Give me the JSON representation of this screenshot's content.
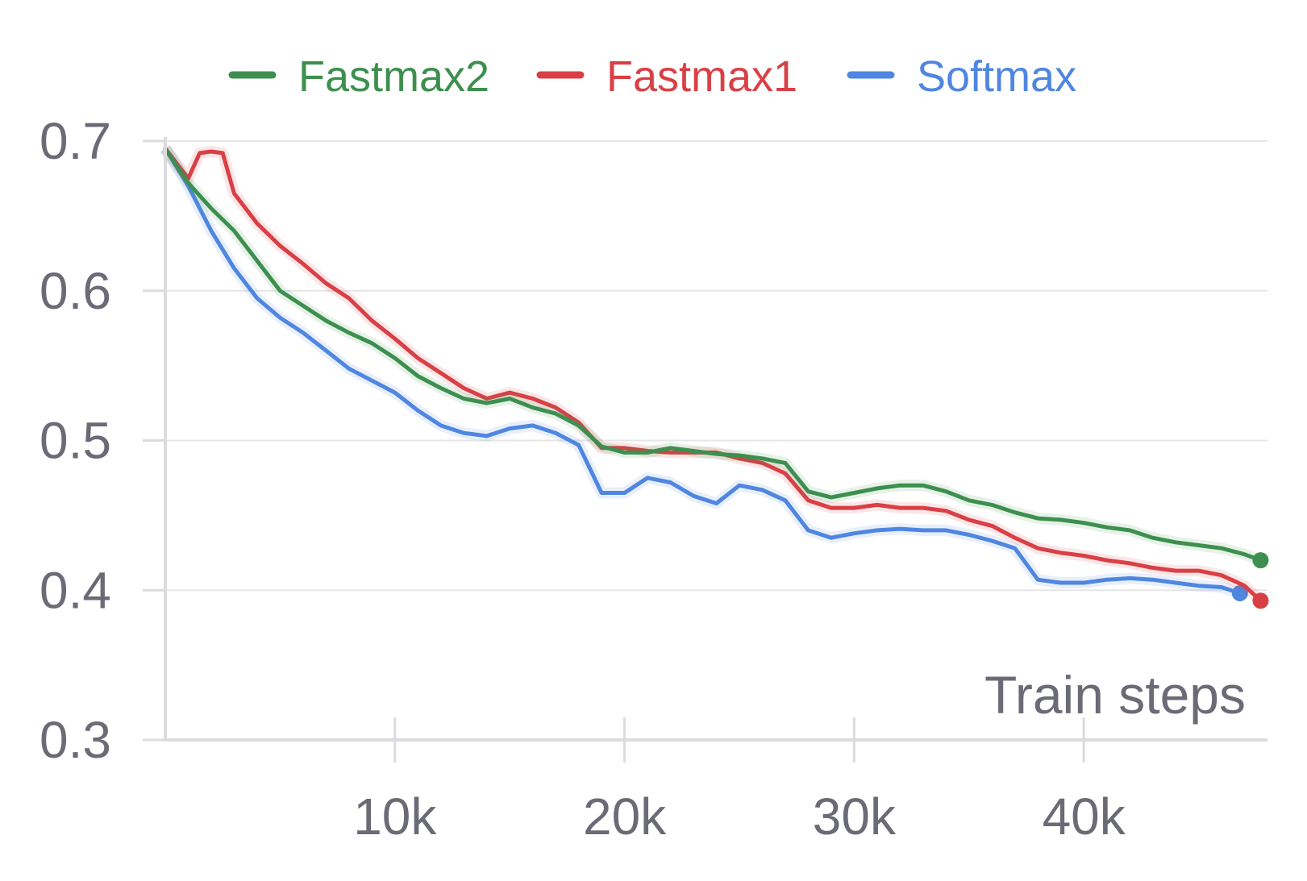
{
  "chart_data": {
    "type": "line",
    "title": "",
    "xlabel": "Train steps",
    "ylabel": "",
    "xlim": [
      0,
      48000
    ],
    "ylim": [
      0.3,
      0.7
    ],
    "xticks": [
      10000,
      20000,
      30000,
      40000
    ],
    "xtick_labels": [
      "10k",
      "20k",
      "30k",
      "40k"
    ],
    "yticks": [
      0.3,
      0.4,
      0.5,
      0.6,
      0.7
    ],
    "ytick_labels": [
      "0.3",
      "0.4",
      "0.5",
      "0.6",
      "0.7"
    ],
    "grid": "horizontal",
    "legend_position": "top-center",
    "series": [
      {
        "name": "Fastmax2",
        "color": "#3d8f4f",
        "x": [
          0,
          1000,
          2000,
          3000,
          4000,
          5000,
          6000,
          7000,
          8000,
          9000,
          10000,
          11000,
          12000,
          13000,
          14000,
          15000,
          16000,
          17000,
          18000,
          19000,
          20000,
          21000,
          22000,
          23000,
          24000,
          25000,
          26000,
          27000,
          28000,
          29000,
          30000,
          31000,
          32000,
          33000,
          34000,
          35000,
          36000,
          37000,
          38000,
          39000,
          40000,
          41000,
          42000,
          43000,
          44000,
          45000,
          46000,
          47000,
          47700
        ],
        "y": [
          0.695,
          0.672,
          0.655,
          0.64,
          0.62,
          0.6,
          0.59,
          0.58,
          0.572,
          0.565,
          0.555,
          0.543,
          0.535,
          0.528,
          0.525,
          0.528,
          0.522,
          0.518,
          0.51,
          0.496,
          0.492,
          0.492,
          0.495,
          0.493,
          0.491,
          0.49,
          0.488,
          0.485,
          0.466,
          0.462,
          0.465,
          0.468,
          0.47,
          0.47,
          0.466,
          0.46,
          0.457,
          0.452,
          0.448,
          0.447,
          0.445,
          0.442,
          0.44,
          0.435,
          0.432,
          0.43,
          0.428,
          0.424,
          0.42
        ]
      },
      {
        "name": "Fastmax1",
        "color": "#d94046",
        "x": [
          0,
          1000,
          1500,
          2000,
          2500,
          3000,
          4000,
          5000,
          6000,
          7000,
          8000,
          9000,
          10000,
          11000,
          12000,
          13000,
          14000,
          15000,
          16000,
          17000,
          18000,
          19000,
          20000,
          21000,
          22000,
          23000,
          24000,
          25000,
          26000,
          27000,
          28000,
          29000,
          30000,
          31000,
          32000,
          33000,
          34000,
          35000,
          36000,
          37000,
          38000,
          39000,
          40000,
          41000,
          42000,
          43000,
          44000,
          45000,
          46000,
          47000,
          47700
        ],
        "y": [
          0.695,
          0.675,
          0.692,
          0.693,
          0.692,
          0.665,
          0.645,
          0.63,
          0.618,
          0.605,
          0.595,
          0.58,
          0.568,
          0.555,
          0.545,
          0.535,
          0.528,
          0.532,
          0.528,
          0.522,
          0.512,
          0.495,
          0.495,
          0.493,
          0.492,
          0.492,
          0.492,
          0.488,
          0.485,
          0.478,
          0.46,
          0.455,
          0.455,
          0.457,
          0.455,
          0.455,
          0.453,
          0.447,
          0.443,
          0.435,
          0.428,
          0.425,
          0.423,
          0.42,
          0.418,
          0.415,
          0.413,
          0.413,
          0.41,
          0.403,
          0.393
        ]
      },
      {
        "name": "Softmax",
        "color": "#4f86e0",
        "x": [
          0,
          1000,
          2000,
          3000,
          4000,
          5000,
          6000,
          7000,
          8000,
          9000,
          10000,
          11000,
          12000,
          13000,
          14000,
          15000,
          16000,
          17000,
          18000,
          19000,
          20000,
          21000,
          22000,
          23000,
          24000,
          25000,
          26000,
          27000,
          28000,
          29000,
          30000,
          31000,
          32000,
          33000,
          34000,
          35000,
          36000,
          37000,
          38000,
          39000,
          40000,
          41000,
          42000,
          43000,
          44000,
          45000,
          46000,
          46800
        ],
        "y": [
          0.695,
          0.67,
          0.64,
          0.615,
          0.595,
          0.582,
          0.572,
          0.56,
          0.548,
          0.54,
          0.532,
          0.52,
          0.51,
          0.505,
          0.503,
          0.508,
          0.51,
          0.505,
          0.497,
          0.465,
          0.465,
          0.475,
          0.472,
          0.463,
          0.458,
          0.47,
          0.467,
          0.46,
          0.44,
          0.435,
          0.438,
          0.44,
          0.441,
          0.44,
          0.44,
          0.437,
          0.433,
          0.428,
          0.407,
          0.405,
          0.405,
          0.407,
          0.408,
          0.407,
          0.405,
          0.403,
          0.402,
          0.398
        ]
      }
    ]
  }
}
